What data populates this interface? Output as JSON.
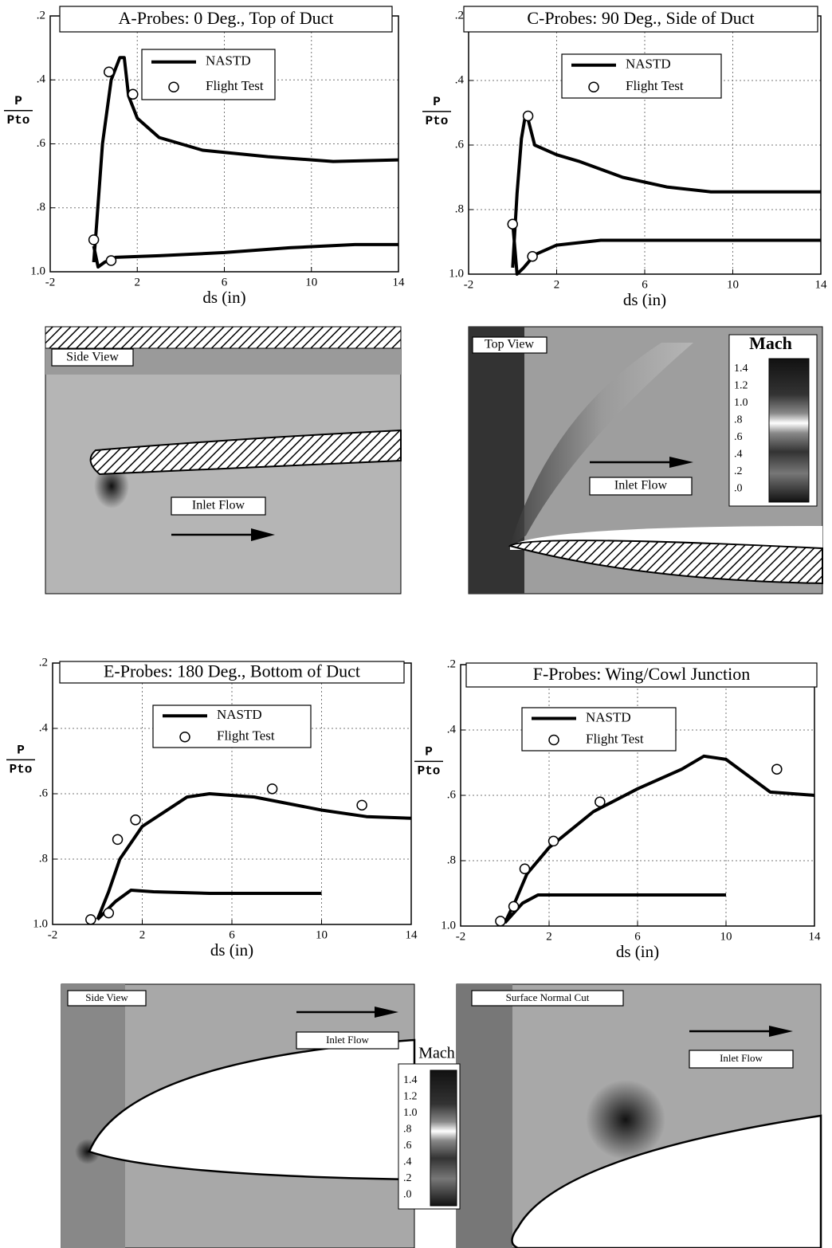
{
  "chart_data": [
    {
      "type": "line",
      "title": "A-Probes: 0 Deg., Top of Duct",
      "xlabel": "ds (in)",
      "ylabel_top": "P",
      "ylabel_bottom": "Pto",
      "xlim": [
        -2,
        14
      ],
      "xticks": [
        -2,
        2,
        6,
        10,
        14
      ],
      "ylim": [
        1.0,
        0.2
      ],
      "yticks": [
        {
          "value": 0.2,
          "label": ".2"
        },
        {
          "value": 0.4,
          "label": ".4"
        },
        {
          "value": 0.6,
          "label": ".6"
        },
        {
          "value": 0.8,
          "label": ".8"
        },
        {
          "value": 1.0,
          "label": "1.0"
        }
      ],
      "grid": true,
      "series": [
        {
          "name": "NASTD",
          "color": "#000000",
          "style": "line",
          "x": [
            0,
            0.1,
            0.4,
            0.8,
            1.2,
            1.4,
            1.6,
            2,
            3,
            5,
            8,
            11,
            14,
            null,
            0,
            0.2,
            0.5,
            1,
            3,
            6,
            9,
            12,
            14
          ],
          "values": [
            0.97,
            0.88,
            0.6,
            0.4,
            0.33,
            0.33,
            0.45,
            0.52,
            0.58,
            0.62,
            0.64,
            0.655,
            0.65,
            null,
            0.92,
            0.985,
            0.97,
            0.955,
            0.95,
            0.94,
            0.925,
            0.915,
            0.915
          ]
        },
        {
          "name": "Flight Test",
          "color": "#000000",
          "style": "markers",
          "x": [
            0,
            0.7,
            1.8,
            0.8
          ],
          "values": [
            0.9,
            0.375,
            0.445,
            0.965
          ]
        }
      ]
    },
    {
      "type": "line",
      "title": "C-Probes: 90 Deg., Side of Duct",
      "xlabel": "ds (in)",
      "ylabel_top": "P",
      "ylabel_bottom": "Pto",
      "xlim": [
        -2,
        14
      ],
      "xticks": [
        -2,
        2,
        6,
        10,
        14
      ],
      "ylim": [
        1.0,
        0.2
      ],
      "yticks": [
        {
          "value": 0.2,
          "label": ".2"
        },
        {
          "value": 0.4,
          "label": ".4"
        },
        {
          "value": 0.6,
          "label": ".6"
        },
        {
          "value": 0.8,
          "label": ".8"
        },
        {
          "value": 1.0,
          "label": "1.0"
        }
      ],
      "grid": true,
      "series": [
        {
          "name": "NASTD",
          "color": "#000000",
          "style": "line",
          "x": [
            0,
            0.2,
            0.4,
            0.55,
            0.7,
            1,
            2,
            3,
            5,
            7,
            9,
            14,
            null,
            0,
            0.2,
            0.5,
            1,
            2,
            4,
            8,
            14
          ],
          "values": [
            0.98,
            0.75,
            0.58,
            0.52,
            0.52,
            0.6,
            0.63,
            0.65,
            0.7,
            0.73,
            0.745,
            0.745,
            null,
            0.84,
            1.0,
            0.98,
            0.94,
            0.91,
            0.895,
            0.895,
            0.895
          ]
        },
        {
          "name": "Flight Test",
          "color": "#000000",
          "style": "markers",
          "x": [
            0,
            0.7,
            0.9
          ],
          "values": [
            0.845,
            0.51,
            0.945
          ]
        }
      ]
    },
    {
      "type": "line",
      "title": "E-Probes: 180 Deg., Bottom of Duct",
      "xlabel": "ds (in)",
      "ylabel_top": "P",
      "ylabel_bottom": "Pto",
      "xlim": [
        -2,
        14
      ],
      "xticks": [
        -2,
        2,
        6,
        10,
        14
      ],
      "ylim": [
        1.0,
        0.2
      ],
      "yticks": [
        {
          "value": 0.2,
          "label": ".2"
        },
        {
          "value": 0.4,
          "label": ".4"
        },
        {
          "value": 0.6,
          "label": ".6"
        },
        {
          "value": 0.8,
          "label": ".8"
        },
        {
          "value": 1.0,
          "label": "1.0"
        }
      ],
      "grid": true,
      "series": [
        {
          "name": "NASTD",
          "color": "#000000",
          "style": "line",
          "x": [
            0,
            0.5,
            1,
            2,
            4,
            5,
            7,
            10,
            12,
            14,
            null,
            0,
            0.8,
            1.5,
            2.5,
            5,
            10
          ],
          "values": [
            0.985,
            0.9,
            0.8,
            0.7,
            0.61,
            0.6,
            0.61,
            0.65,
            0.67,
            0.675,
            null,
            0.985,
            0.93,
            0.895,
            0.9,
            0.905,
            0.905
          ]
        },
        {
          "name": "Flight Test",
          "color": "#000000",
          "style": "markers",
          "x": [
            -0.3,
            0.5,
            0.9,
            1.7,
            7.8,
            11.8
          ],
          "values": [
            0.985,
            0.965,
            0.74,
            0.68,
            0.585,
            0.635
          ]
        }
      ]
    },
    {
      "type": "line",
      "title": "F-Probes: Wing/Cowl Junction",
      "xlabel": "ds (in)",
      "ylabel_top": "P",
      "ylabel_bottom": "Pto",
      "xlim": [
        -2,
        14
      ],
      "xticks": [
        -2,
        2,
        6,
        10,
        14
      ],
      "ylim": [
        1.0,
        0.2
      ],
      "yticks": [
        {
          "value": 0.2,
          "label": ".2"
        },
        {
          "value": 0.4,
          "label": ".4"
        },
        {
          "value": 0.6,
          "label": ".6"
        },
        {
          "value": 0.8,
          "label": ".8"
        },
        {
          "value": 1.0,
          "label": "1.0"
        }
      ],
      "grid": true,
      "series": [
        {
          "name": "NASTD",
          "color": "#000000",
          "style": "line",
          "x": [
            0,
            0.5,
            1,
            2,
            4,
            6,
            8,
            9,
            10,
            12,
            14,
            null,
            0,
            0.8,
            1.5,
            5,
            10
          ],
          "values": [
            0.99,
            0.92,
            0.84,
            0.76,
            0.65,
            0.58,
            0.52,
            0.48,
            0.49,
            0.59,
            0.6,
            null,
            0.99,
            0.93,
            0.905,
            0.905,
            0.905
          ]
        },
        {
          "name": "Flight Test",
          "color": "#000000",
          "style": "markers",
          "x": [
            -0.2,
            0.4,
            0.9,
            2.2,
            4.3,
            12.3
          ],
          "values": [
            0.985,
            0.94,
            0.825,
            0.74,
            0.62,
            0.52
          ]
        }
      ]
    }
  ],
  "panels": [
    {
      "label": "Side View",
      "flow_label": "Inlet Flow"
    },
    {
      "label": "Top View",
      "flow_label": "Inlet Flow",
      "colorbar": {
        "title": "Mach",
        "labels": [
          "1.4",
          "1.2",
          "1.0",
          ".8",
          ".6",
          ".4",
          ".2",
          ".0"
        ]
      }
    },
    {
      "label": "Side View",
      "flow_label": "Inlet Flow"
    },
    {
      "label": "Surface Normal Cut",
      "flow_label": "Inlet Flow"
    }
  ],
  "colorbar": {
    "title": "Mach",
    "labels": [
      "1.4",
      "1.2",
      "1.0",
      ".8",
      ".6",
      ".4",
      ".2",
      ".0"
    ]
  }
}
